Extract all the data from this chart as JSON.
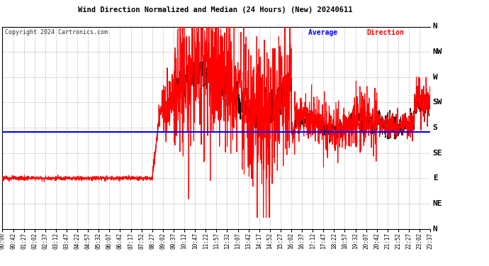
{
  "title": "Wind Direction Normalized and Median (24 Hours) (New) 20240611",
  "copyright": "Copyright 2024 Cartronics.com",
  "ytick_labels": [
    "N",
    "NW",
    "W",
    "SW",
    "S",
    "SE",
    "E",
    "NE",
    "N"
  ],
  "ytick_values": [
    360,
    315,
    270,
    225,
    180,
    135,
    90,
    45,
    0
  ],
  "ylim": [
    0,
    360
  ],
  "background_color": "#ffffff",
  "grid_color": "#bbbbbb",
  "avg_direction_value": 172,
  "xtick_labels": [
    "00:00",
    "00:42",
    "01:27",
    "02:02",
    "02:37",
    "03:12",
    "03:47",
    "04:22",
    "04:57",
    "05:32",
    "06:07",
    "06:42",
    "07:17",
    "07:52",
    "08:27",
    "09:02",
    "09:37",
    "10:12",
    "10:47",
    "11:22",
    "11:57",
    "12:32",
    "13:07",
    "13:42",
    "14:17",
    "14:52",
    "15:27",
    "16:02",
    "16:37",
    "17:12",
    "17:47",
    "18:22",
    "18:57",
    "19:32",
    "20:07",
    "20:42",
    "21:17",
    "21:52",
    "22:27",
    "23:02",
    "23:37"
  ]
}
